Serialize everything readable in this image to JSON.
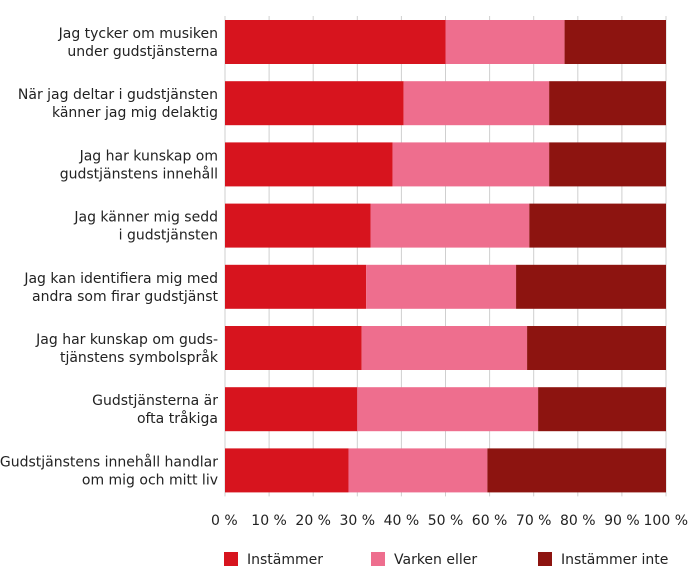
{
  "chart_data": {
    "type": "bar",
    "orientation": "horizontal",
    "stacked": true,
    "categories": [
      [
        "Jag tycker om musiken",
        "under gudstjänsterna"
      ],
      [
        "När jag deltar i gudstjänsten",
        "känner jag mig delaktig"
      ],
      [
        "Jag har kunskap om",
        "gudstjänstens innehåll"
      ],
      [
        "Jag känner mig sedd",
        "i gudstjänsten"
      ],
      [
        "Jag kan identifiera mig med",
        "andra som firar gudstjänst"
      ],
      [
        "Jag har kunskap om guds-",
        "tjänstens symbolspråk"
      ],
      [
        "Gudstjänsterna är",
        "ofta tråkiga"
      ],
      [
        "Gudstjänstens innehåll handlar",
        "om mig och mitt liv"
      ]
    ],
    "series": [
      {
        "name": "Instämmer",
        "color": "#d7141e",
        "values": [
          50,
          40.5,
          38,
          33,
          32,
          31,
          30,
          28
        ]
      },
      {
        "name": "Varken eller",
        "color": "#ee6e8e",
        "values": [
          27,
          33,
          35.5,
          36,
          34,
          37.5,
          41,
          31.5
        ]
      },
      {
        "name": "Instämmer inte",
        "color": "#8d1410",
        "values": [
          23,
          26.5,
          26.5,
          31,
          34,
          31.5,
          29,
          40.5
        ]
      }
    ],
    "xticks": [
      "0 %",
      "10 %",
      "20 %",
      "30 %",
      "40 %",
      "50 %",
      "60 %",
      "70 %",
      "80 %",
      "90 %",
      "100 %"
    ],
    "xlim": [
      0,
      100
    ],
    "grid": true,
    "legend_position": "bottom"
  }
}
